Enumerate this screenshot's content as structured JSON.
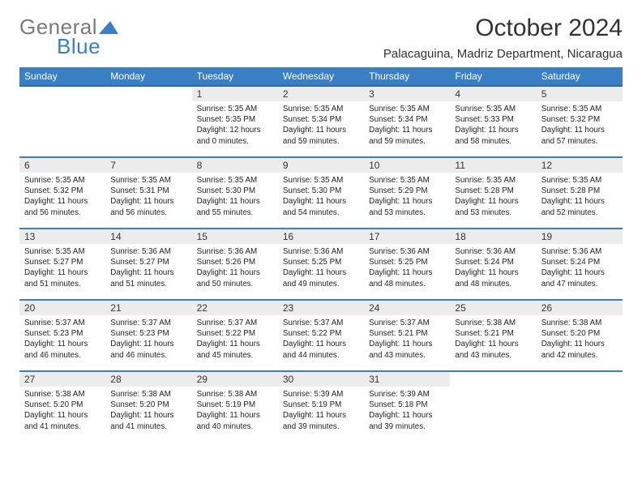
{
  "logo": {
    "word1": "General",
    "word2": "Blue"
  },
  "title": "October 2024",
  "location": "Palacaguina, Madriz Department, Nicaragua",
  "colors": {
    "header_bg": "#3a7fc4",
    "header_border": "#2e6aa6",
    "daynum_bg": "#ececec",
    "row_border": "#3a7fc4",
    "logo_gray": "#7a7a7a",
    "logo_blue": "#3a7fc4"
  },
  "day_headers": [
    "Sunday",
    "Monday",
    "Tuesday",
    "Wednesday",
    "Thursday",
    "Friday",
    "Saturday"
  ],
  "weeks": [
    [
      {
        "empty": true
      },
      {
        "empty": true
      },
      {
        "num": "1",
        "sunrise": "Sunrise: 5:35 AM",
        "sunset": "Sunset: 5:35 PM",
        "daylight": "Daylight: 12 hours and 0 minutes."
      },
      {
        "num": "2",
        "sunrise": "Sunrise: 5:35 AM",
        "sunset": "Sunset: 5:34 PM",
        "daylight": "Daylight: 11 hours and 59 minutes."
      },
      {
        "num": "3",
        "sunrise": "Sunrise: 5:35 AM",
        "sunset": "Sunset: 5:34 PM",
        "daylight": "Daylight: 11 hours and 59 minutes."
      },
      {
        "num": "4",
        "sunrise": "Sunrise: 5:35 AM",
        "sunset": "Sunset: 5:33 PM",
        "daylight": "Daylight: 11 hours and 58 minutes."
      },
      {
        "num": "5",
        "sunrise": "Sunrise: 5:35 AM",
        "sunset": "Sunset: 5:32 PM",
        "daylight": "Daylight: 11 hours and 57 minutes."
      }
    ],
    [
      {
        "num": "6",
        "sunrise": "Sunrise: 5:35 AM",
        "sunset": "Sunset: 5:32 PM",
        "daylight": "Daylight: 11 hours and 56 minutes."
      },
      {
        "num": "7",
        "sunrise": "Sunrise: 5:35 AM",
        "sunset": "Sunset: 5:31 PM",
        "daylight": "Daylight: 11 hours and 56 minutes."
      },
      {
        "num": "8",
        "sunrise": "Sunrise: 5:35 AM",
        "sunset": "Sunset: 5:30 PM",
        "daylight": "Daylight: 11 hours and 55 minutes."
      },
      {
        "num": "9",
        "sunrise": "Sunrise: 5:35 AM",
        "sunset": "Sunset: 5:30 PM",
        "daylight": "Daylight: 11 hours and 54 minutes."
      },
      {
        "num": "10",
        "sunrise": "Sunrise: 5:35 AM",
        "sunset": "Sunset: 5:29 PM",
        "daylight": "Daylight: 11 hours and 53 minutes."
      },
      {
        "num": "11",
        "sunrise": "Sunrise: 5:35 AM",
        "sunset": "Sunset: 5:28 PM",
        "daylight": "Daylight: 11 hours and 53 minutes."
      },
      {
        "num": "12",
        "sunrise": "Sunrise: 5:35 AM",
        "sunset": "Sunset: 5:28 PM",
        "daylight": "Daylight: 11 hours and 52 minutes."
      }
    ],
    [
      {
        "num": "13",
        "sunrise": "Sunrise: 5:35 AM",
        "sunset": "Sunset: 5:27 PM",
        "daylight": "Daylight: 11 hours and 51 minutes."
      },
      {
        "num": "14",
        "sunrise": "Sunrise: 5:36 AM",
        "sunset": "Sunset: 5:27 PM",
        "daylight": "Daylight: 11 hours and 51 minutes."
      },
      {
        "num": "15",
        "sunrise": "Sunrise: 5:36 AM",
        "sunset": "Sunset: 5:26 PM",
        "daylight": "Daylight: 11 hours and 50 minutes."
      },
      {
        "num": "16",
        "sunrise": "Sunrise: 5:36 AM",
        "sunset": "Sunset: 5:25 PM",
        "daylight": "Daylight: 11 hours and 49 minutes."
      },
      {
        "num": "17",
        "sunrise": "Sunrise: 5:36 AM",
        "sunset": "Sunset: 5:25 PM",
        "daylight": "Daylight: 11 hours and 48 minutes."
      },
      {
        "num": "18",
        "sunrise": "Sunrise: 5:36 AM",
        "sunset": "Sunset: 5:24 PM",
        "daylight": "Daylight: 11 hours and 48 minutes."
      },
      {
        "num": "19",
        "sunrise": "Sunrise: 5:36 AM",
        "sunset": "Sunset: 5:24 PM",
        "daylight": "Daylight: 11 hours and 47 minutes."
      }
    ],
    [
      {
        "num": "20",
        "sunrise": "Sunrise: 5:37 AM",
        "sunset": "Sunset: 5:23 PM",
        "daylight": "Daylight: 11 hours and 46 minutes."
      },
      {
        "num": "21",
        "sunrise": "Sunrise: 5:37 AM",
        "sunset": "Sunset: 5:23 PM",
        "daylight": "Daylight: 11 hours and 46 minutes."
      },
      {
        "num": "22",
        "sunrise": "Sunrise: 5:37 AM",
        "sunset": "Sunset: 5:22 PM",
        "daylight": "Daylight: 11 hours and 45 minutes."
      },
      {
        "num": "23",
        "sunrise": "Sunrise: 5:37 AM",
        "sunset": "Sunset: 5:22 PM",
        "daylight": "Daylight: 11 hours and 44 minutes."
      },
      {
        "num": "24",
        "sunrise": "Sunrise: 5:37 AM",
        "sunset": "Sunset: 5:21 PM",
        "daylight": "Daylight: 11 hours and 43 minutes."
      },
      {
        "num": "25",
        "sunrise": "Sunrise: 5:38 AM",
        "sunset": "Sunset: 5:21 PM",
        "daylight": "Daylight: 11 hours and 43 minutes."
      },
      {
        "num": "26",
        "sunrise": "Sunrise: 5:38 AM",
        "sunset": "Sunset: 5:20 PM",
        "daylight": "Daylight: 11 hours and 42 minutes."
      }
    ],
    [
      {
        "num": "27",
        "sunrise": "Sunrise: 5:38 AM",
        "sunset": "Sunset: 5:20 PM",
        "daylight": "Daylight: 11 hours and 41 minutes."
      },
      {
        "num": "28",
        "sunrise": "Sunrise: 5:38 AM",
        "sunset": "Sunset: 5:20 PM",
        "daylight": "Daylight: 11 hours and 41 minutes."
      },
      {
        "num": "29",
        "sunrise": "Sunrise: 5:38 AM",
        "sunset": "Sunset: 5:19 PM",
        "daylight": "Daylight: 11 hours and 40 minutes."
      },
      {
        "num": "30",
        "sunrise": "Sunrise: 5:39 AM",
        "sunset": "Sunset: 5:19 PM",
        "daylight": "Daylight: 11 hours and 39 minutes."
      },
      {
        "num": "31",
        "sunrise": "Sunrise: 5:39 AM",
        "sunset": "Sunset: 5:18 PM",
        "daylight": "Daylight: 11 hours and 39 minutes."
      },
      {
        "empty": true
      },
      {
        "empty": true
      }
    ]
  ]
}
